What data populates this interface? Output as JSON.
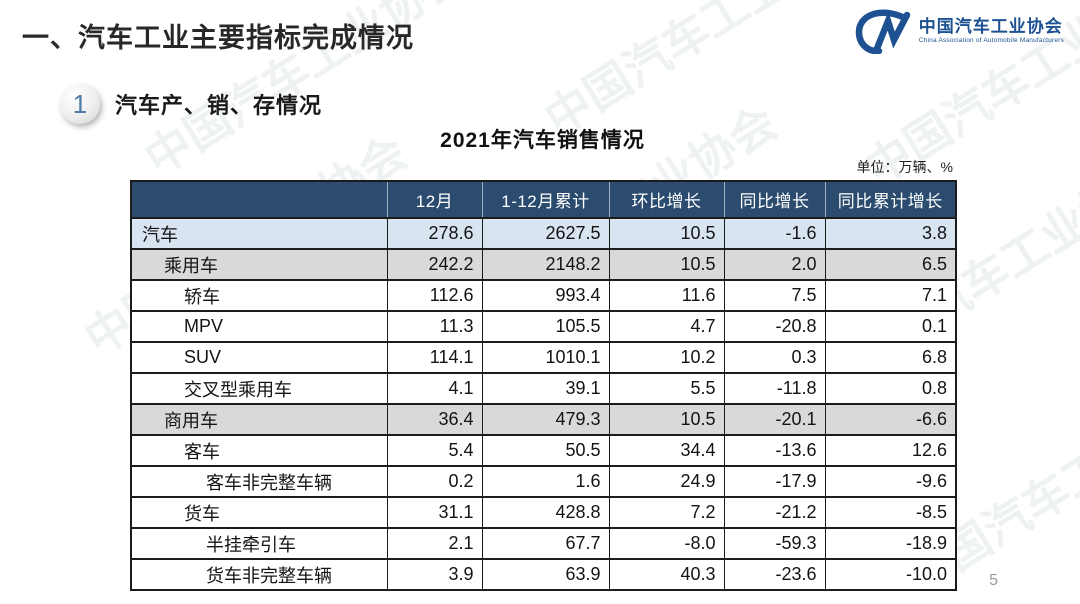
{
  "page": {
    "title": "一、汽车工业主要指标完成情况",
    "page_number": "5"
  },
  "logo": {
    "monogram": "CM",
    "name_cn": "中国汽车工业协会",
    "name_en": "China Association of Automobile Manufacturers",
    "color": "#1d5192"
  },
  "section": {
    "badge": "1",
    "title": "汽车产、销、存情况"
  },
  "table": {
    "title": "2021年汽车销售情况",
    "unit_note": "单位：万辆、%",
    "columns": [
      "",
      "12月",
      "1-12月累计",
      "环比增长",
      "同比增长",
      "同比累计增长"
    ],
    "rows": [
      {
        "label": "汽车",
        "indent": 0,
        "style": "blue",
        "values": [
          "278.6",
          "2627.5",
          "10.5",
          "-1.6",
          "3.8"
        ]
      },
      {
        "label": "乘用车",
        "indent": 1,
        "style": "gray",
        "values": [
          "242.2",
          "2148.2",
          "10.5",
          "2.0",
          "6.5"
        ]
      },
      {
        "label": "轿车",
        "indent": 2,
        "style": "white",
        "values": [
          "112.6",
          "993.4",
          "11.6",
          "7.5",
          "7.1"
        ]
      },
      {
        "label": "MPV",
        "indent": 2,
        "style": "white",
        "values": [
          "11.3",
          "105.5",
          "4.7",
          "-20.8",
          "0.1"
        ]
      },
      {
        "label": "SUV",
        "indent": 2,
        "style": "white",
        "values": [
          "114.1",
          "1010.1",
          "10.2",
          "0.3",
          "6.8"
        ]
      },
      {
        "label": "交叉型乘用车",
        "indent": 2,
        "style": "white",
        "values": [
          "4.1",
          "39.1",
          "5.5",
          "-11.8",
          "0.8"
        ]
      },
      {
        "label": "商用车",
        "indent": 1,
        "style": "gray",
        "values": [
          "36.4",
          "479.3",
          "10.5",
          "-20.1",
          "-6.6"
        ]
      },
      {
        "label": "客车",
        "indent": 2,
        "style": "white",
        "values": [
          "5.4",
          "50.5",
          "34.4",
          "-13.6",
          "12.6"
        ]
      },
      {
        "label": "客车非完整车辆",
        "indent": 3,
        "style": "white",
        "values": [
          "0.2",
          "1.6",
          "24.9",
          "-17.9",
          "-9.6"
        ]
      },
      {
        "label": "货车",
        "indent": 2,
        "style": "white",
        "values": [
          "31.1",
          "428.8",
          "7.2",
          "-21.2",
          "-8.5"
        ]
      },
      {
        "label": "半挂牵引车",
        "indent": 3,
        "style": "white",
        "values": [
          "2.1",
          "67.7",
          "-8.0",
          "-59.3",
          "-18.9"
        ]
      },
      {
        "label": "货车非完整车辆",
        "indent": 3,
        "style": "white",
        "values": [
          "3.9",
          "63.9",
          "40.3",
          "-23.6",
          "-10.0"
        ]
      }
    ]
  },
  "watermark": {
    "text": "中国汽车工业协会"
  },
  "colors": {
    "header_bg": "#2b4c6e",
    "row_blue": "#d9e4f1",
    "row_gray": "#d9d9d9",
    "logo_blue": "#1d5192",
    "border_dark": "#1c1c1c"
  }
}
